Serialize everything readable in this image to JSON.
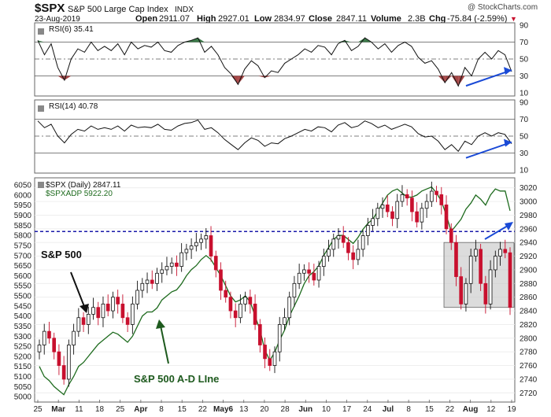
{
  "header": {
    "symbol": "$SPX",
    "name": "S&P 500 Large Cap Index",
    "exchange": "INDX",
    "date": "23-Aug-2019",
    "open_label": "Open",
    "open": "2911.07",
    "high_label": "High",
    "high": "2927.01",
    "low_label": "Low",
    "low": "2834.97",
    "close_label": "Close",
    "close": "2847.11",
    "volume_label": "Volume",
    "volume": "2.3B",
    "chg_label": "Chg",
    "chg": "-75.84 (-2.59%)",
    "chg_arrow": "▼",
    "watermark": "@ StockCharts.com"
  },
  "colors": {
    "candle_up": "#ffffff",
    "candle_down": "#c8102e",
    "adline": "#1e6b1e",
    "blue_arrow": "#1a4ad6",
    "dashed_level": "#1a1aaa",
    "rsi_fill_over": "#3d7a4a",
    "rsi_fill_under": "#a64646",
    "highlight_box": "#bfbfbf"
  },
  "chart_data": [
    {
      "type": "line",
      "panel": "RSI(6)",
      "legend": "RSI(6) 35.41",
      "title": "RSI(6)",
      "last_value": 35.41,
      "ylim": [
        10,
        90
      ],
      "y_ticks": [
        10,
        30,
        50,
        70,
        90
      ],
      "reference_lines": [
        30,
        50,
        70
      ],
      "values": [
        72,
        55,
        68,
        40,
        25,
        50,
        62,
        58,
        70,
        60,
        65,
        60,
        68,
        55,
        70,
        62,
        66,
        64,
        70,
        60,
        58,
        66,
        70,
        72,
        75,
        58,
        65,
        55,
        40,
        32,
        20,
        38,
        48,
        42,
        28,
        36,
        34,
        45,
        50,
        55,
        62,
        58,
        66,
        64,
        55,
        68,
        72,
        60,
        65,
        75,
        70,
        62,
        68,
        58,
        66,
        70,
        65,
        52,
        45,
        48,
        38,
        22,
        34,
        18,
        40,
        30,
        50,
        58,
        50,
        60,
        55,
        35
      ],
      "annotation": "blue arrow rising toward right axis"
    },
    {
      "type": "line",
      "panel": "RSI(14)",
      "legend": "RSI(14) 40.78",
      "title": "RSI(14)",
      "last_value": 40.78,
      "ylim": [
        10,
        90
      ],
      "y_ticks": [
        10,
        30,
        50,
        70,
        90
      ],
      "reference_lines": [
        30,
        50,
        70
      ],
      "values": [
        68,
        60,
        64,
        50,
        42,
        52,
        58,
        56,
        62,
        58,
        60,
        58,
        62,
        56,
        63,
        60,
        61,
        60,
        64,
        58,
        57,
        62,
        65,
        66,
        69,
        58,
        60,
        54,
        46,
        40,
        34,
        42,
        48,
        45,
        38,
        42,
        41,
        47,
        50,
        54,
        58,
        56,
        61,
        60,
        55,
        63,
        66,
        60,
        62,
        68,
        65,
        60,
        63,
        58,
        61,
        64,
        61,
        53,
        49,
        50,
        44,
        34,
        40,
        32,
        44,
        40,
        50,
        54,
        50,
        54,
        52,
        41
      ],
      "annotation": "blue arrow rising toward right axis"
    },
    {
      "type": "candlestick",
      "panel": "price",
      "title": "$SPX (Daily) 2847.11",
      "legend": [
        "$SPX (Daily) 2847.11",
        "$SPXADP 5922.20"
      ],
      "y_axis_right": "SPX price",
      "y_ticks_right": [
        2720,
        2740,
        2760,
        2780,
        2800,
        2820,
        2840,
        2860,
        2880,
        2900,
        2920,
        2940,
        2960,
        2980,
        3000,
        3020
      ],
      "ylim_right": [
        2710,
        3030
      ],
      "y_axis_left": "A-D Line",
      "y_ticks_left": [
        5000,
        5050,
        5100,
        5150,
        5200,
        5250,
        5300,
        5350,
        5400,
        5450,
        5500,
        5550,
        5600,
        5650,
        5700,
        5750,
        5800,
        5850,
        5900,
        5950,
        6000,
        6050
      ],
      "ylim_left": [
        4985,
        6070
      ],
      "x_tick_labels": [
        "25",
        "Mar",
        "11",
        "18",
        "25",
        "Apr",
        "8",
        "15",
        "22",
        "May6",
        "13",
        "20",
        "28",
        "Jun",
        "10",
        "17",
        "24",
        "Jul",
        "8",
        "15",
        "22",
        "Aug",
        "12",
        "19"
      ],
      "dashed_level": 2956,
      "closes": [
        2790,
        2810,
        2800,
        2780,
        2760,
        2740,
        2790,
        2810,
        2830,
        2820,
        2835,
        2845,
        2830,
        2850,
        2840,
        2860,
        2850,
        2830,
        2820,
        2850,
        2870,
        2880,
        2885,
        2880,
        2895,
        2900,
        2905,
        2910,
        2905,
        2925,
        2930,
        2935,
        2940,
        2945,
        2950,
        2920,
        2900,
        2870,
        2860,
        2840,
        2830,
        2850,
        2860,
        2850,
        2820,
        2790,
        2770,
        2760,
        2780,
        2820,
        2830,
        2860,
        2880,
        2895,
        2900,
        2895,
        2885,
        2905,
        2920,
        2930,
        2945,
        2950,
        2940,
        2925,
        2915,
        2930,
        2950,
        2965,
        2975,
        2990,
        2995,
        2985,
        2975,
        3000,
        3010,
        3005,
        2985,
        2970,
        2990,
        3000,
        3015,
        3010,
        2995,
        2960,
        2940,
        2890,
        2850,
        2880,
        2920,
        2930,
        2880,
        2850,
        2900,
        2920,
        2930,
        2925,
        2845
      ],
      "ad_line": [
        5150,
        5100,
        5080,
        5050,
        5030,
        5010,
        5060,
        5100,
        5150,
        5170,
        5200,
        5230,
        5260,
        5280,
        5300,
        5320,
        5310,
        5290,
        5270,
        5300,
        5350,
        5400,
        5420,
        5420,
        5440,
        5480,
        5500,
        5520,
        5530,
        5560,
        5600,
        5630,
        5650,
        5680,
        5700,
        5680,
        5640,
        5600,
        5550,
        5500,
        5470,
        5480,
        5500,
        5470,
        5400,
        5330,
        5230,
        5180,
        5220,
        5280,
        5330,
        5400,
        5450,
        5500,
        5560,
        5600,
        5620,
        5650,
        5700,
        5740,
        5780,
        5800,
        5800,
        5780,
        5760,
        5790,
        5830,
        5860,
        5880,
        5920,
        5960,
        6000,
        6020,
        6030,
        6010,
        5990,
        5990,
        6000,
        6020,
        6030,
        6040,
        6010,
        5970,
        5900,
        5820,
        5850,
        5880,
        5930,
        5960,
        6000,
        5980,
        5950,
        6000,
        6030,
        6020,
        6020,
        5922
      ],
      "annotations": [
        "S&P 500",
        "S&P 500 A-D LIne"
      ],
      "highlight_range": "Aug 2019 consolidation box (about 2845-2940)"
    }
  ]
}
